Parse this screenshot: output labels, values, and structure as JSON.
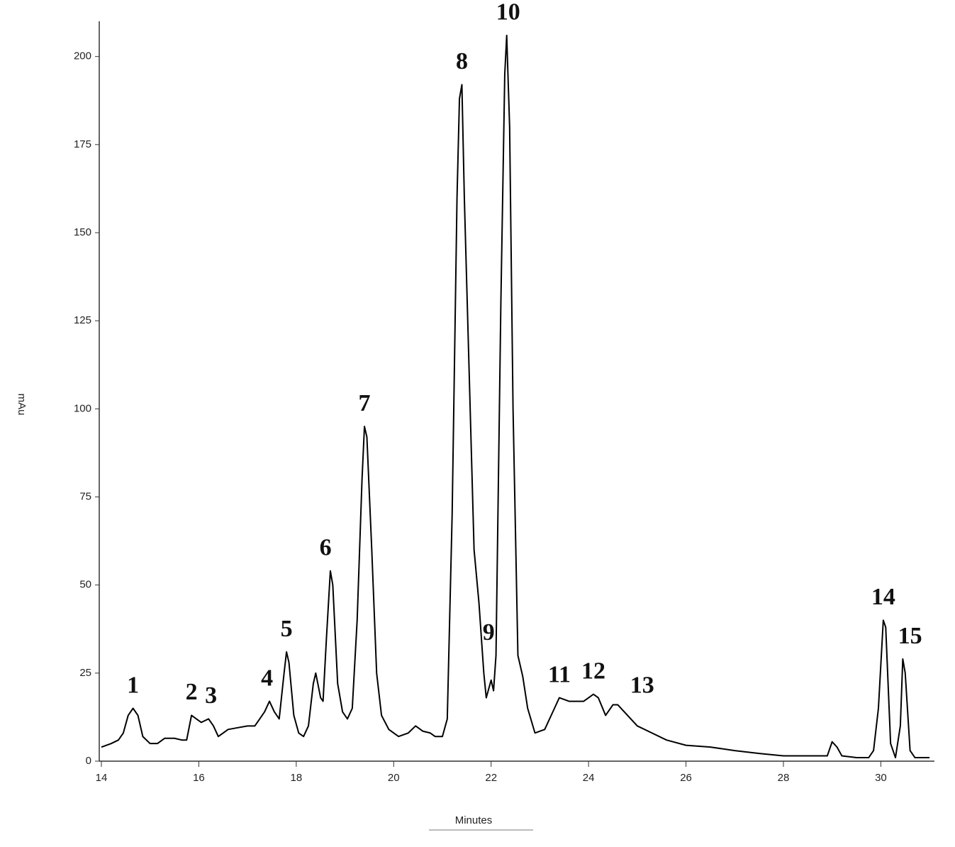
{
  "chart_data": {
    "type": "line",
    "xlabel": "Minutes",
    "ylabel": "mAu",
    "color": "#000000",
    "xlim": [
      14,
      31.1
    ],
    "xticks": [
      14,
      16,
      18,
      20,
      22,
      24,
      26,
      28,
      30
    ],
    "ylim": [
      0,
      210
    ],
    "yticks": [
      0,
      25,
      50,
      75,
      100,
      125,
      150,
      175,
      200
    ],
    "x": [
      14.0,
      14.2,
      14.35,
      14.45,
      14.55,
      14.65,
      14.75,
      14.85,
      15.0,
      15.15,
      15.3,
      15.5,
      15.65,
      15.75,
      15.85,
      15.95,
      16.05,
      16.2,
      16.3,
      16.4,
      16.5,
      16.6,
      16.8,
      17.0,
      17.15,
      17.25,
      17.35,
      17.45,
      17.55,
      17.65,
      17.75,
      17.8,
      17.85,
      17.95,
      18.05,
      18.15,
      18.25,
      18.35,
      18.4,
      18.5,
      18.55,
      18.62,
      18.7,
      18.75,
      18.85,
      18.95,
      19.05,
      19.15,
      19.25,
      19.35,
      19.4,
      19.45,
      19.55,
      19.65,
      19.75,
      19.9,
      20.1,
      20.3,
      20.45,
      20.6,
      20.75,
      20.85,
      21.0,
      21.1,
      21.2,
      21.3,
      21.35,
      21.4,
      21.45,
      21.55,
      21.65,
      21.75,
      21.85,
      21.9,
      22.0,
      22.05,
      22.1,
      22.2,
      22.28,
      22.32,
      22.38,
      22.45,
      22.55,
      22.65,
      22.75,
      22.9,
      23.1,
      23.3,
      23.4,
      23.6,
      23.9,
      24.1,
      24.2,
      24.35,
      24.5,
      24.6,
      24.8,
      25.0,
      25.3,
      25.6,
      26.0,
      26.5,
      27.0,
      27.5,
      28.0,
      28.5,
      28.9,
      29.0,
      29.1,
      29.2,
      29.5,
      29.75,
      29.85,
      29.95,
      30.05,
      30.1,
      30.2,
      30.3,
      30.4,
      30.45,
      30.5,
      30.6,
      30.7,
      31.0
    ],
    "values": [
      4,
      5,
      6,
      8,
      13,
      15,
      13,
      7,
      5,
      5,
      6.5,
      6.5,
      6,
      6,
      13,
      12,
      11,
      12,
      10,
      7,
      8,
      9,
      9.5,
      10,
      10,
      12,
      14,
      17,
      14,
      12,
      25,
      31,
      28,
      13,
      8,
      7,
      10,
      22,
      25,
      18,
      17,
      35,
      54,
      50,
      22,
      14,
      12,
      15,
      40,
      80,
      95,
      92,
      60,
      25,
      13,
      9,
      7,
      8,
      10,
      8.5,
      8,
      7,
      7,
      12,
      70,
      160,
      188,
      192,
      160,
      110,
      60,
      45,
      25,
      18,
      23,
      20,
      30,
      130,
      195,
      206,
      180,
      100,
      30,
      24,
      15,
      8,
      9,
      15,
      18,
      17,
      17,
      19,
      18,
      13,
      16,
      16,
      13,
      10,
      8,
      6,
      4.5,
      4,
      3,
      2.2,
      1.5,
      1.5,
      1.5,
      5.5,
      4,
      1.5,
      1,
      1,
      3,
      15,
      40,
      38,
      5,
      1,
      10,
      29,
      25,
      3,
      1,
      1
    ],
    "annotations": [
      {
        "text": "1",
        "x": 14.65,
        "y": 15
      },
      {
        "text": "2",
        "x": 15.85,
        "y": 13
      },
      {
        "text": "3",
        "x": 16.25,
        "y": 12
      },
      {
        "text": "4",
        "x": 17.4,
        "y": 17
      },
      {
        "text": "5",
        "x": 17.8,
        "y": 31
      },
      {
        "text": "6",
        "x": 18.6,
        "y": 54
      },
      {
        "text": "7",
        "x": 19.4,
        "y": 95
      },
      {
        "text": "8",
        "x": 21.4,
        "y": 192
      },
      {
        "text": "9",
        "x": 21.95,
        "y": 30
      },
      {
        "text": "10",
        "x": 22.35,
        "y": 206
      },
      {
        "text": "11",
        "x": 23.4,
        "y": 18
      },
      {
        "text": "12",
        "x": 24.1,
        "y": 19
      },
      {
        "text": "13",
        "x": 25.1,
        "y": 15
      },
      {
        "text": "14",
        "x": 30.05,
        "y": 40
      },
      {
        "text": "15",
        "x": 30.6,
        "y": 29
      }
    ]
  }
}
